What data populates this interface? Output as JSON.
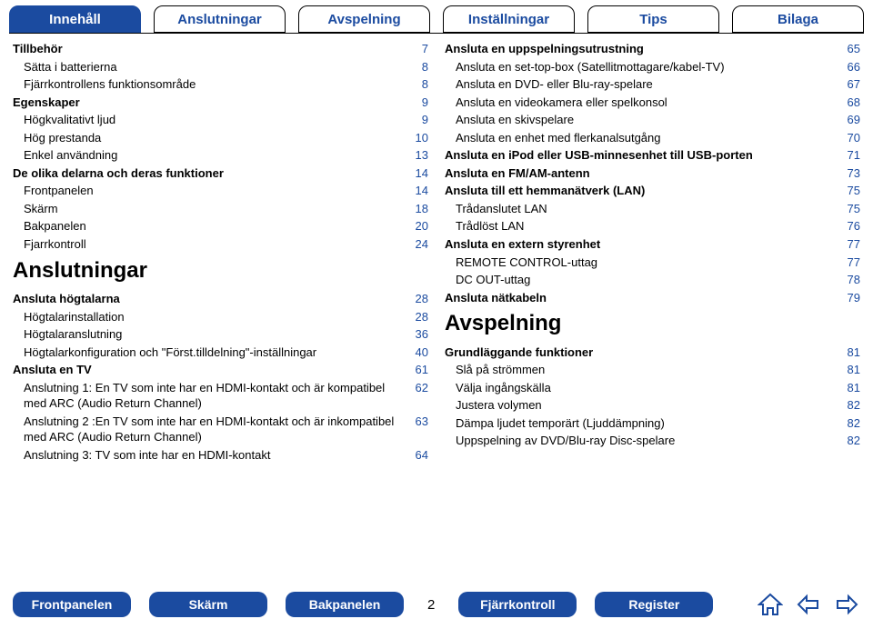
{
  "colors": {
    "brand": "#1b4ba0",
    "text": "#000000",
    "bg": "#ffffff"
  },
  "top_tabs": [
    {
      "label": "Innehåll",
      "active": true
    },
    {
      "label": "Anslutningar",
      "active": false
    },
    {
      "label": "Avspelning",
      "active": false
    },
    {
      "label": "Inställningar",
      "active": false
    },
    {
      "label": "Tips",
      "active": false
    },
    {
      "label": "Bilaga",
      "active": false
    }
  ],
  "col_left": [
    {
      "label": "Tillbehör",
      "page": "7",
      "bold": true,
      "indent": 0
    },
    {
      "label": "Sätta i batterierna",
      "page": "8",
      "bold": false,
      "indent": 1
    },
    {
      "label": "Fjärrkontrollens funktionsområde",
      "page": "8",
      "bold": false,
      "indent": 1
    },
    {
      "label": "Egenskaper",
      "page": "9",
      "bold": true,
      "indent": 0
    },
    {
      "label": "Högkvalitativt ljud",
      "page": "9",
      "bold": false,
      "indent": 1
    },
    {
      "label": "Hög prestanda",
      "page": "10",
      "bold": false,
      "indent": 1
    },
    {
      "label": "Enkel användning",
      "page": "13",
      "bold": false,
      "indent": 1
    },
    {
      "label": "De olika delarna och deras funktioner",
      "page": "14",
      "bold": true,
      "indent": 0
    },
    {
      "label": "Frontpanelen",
      "page": "14",
      "bold": false,
      "indent": 1
    },
    {
      "label": "Skärm",
      "page": "18",
      "bold": false,
      "indent": 1
    },
    {
      "label": "Bakpanelen",
      "page": "20",
      "bold": false,
      "indent": 1
    },
    {
      "label": "Fjarrkontroll",
      "page": "24",
      "bold": false,
      "indent": 1
    }
  ],
  "section_left_title": "Anslutningar",
  "col_left2": [
    {
      "label": "Ansluta högtalarna",
      "page": "28",
      "bold": true,
      "indent": 0
    },
    {
      "label": "Högtalarinstallation",
      "page": "28",
      "bold": false,
      "indent": 1
    },
    {
      "label": "Högtalaranslutning",
      "page": "36",
      "bold": false,
      "indent": 1
    },
    {
      "label": "Högtalarkonfiguration och \"Först.tilldelning\"-inställningar",
      "page": "40",
      "bold": false,
      "indent": 1
    },
    {
      "label": "Ansluta en TV",
      "page": "61",
      "bold": true,
      "indent": 0
    },
    {
      "label": "Anslutning 1: En TV som inte har en HDMI-kontakt och är kompatibel med ARC (Audio Return Channel)",
      "page": "62",
      "bold": false,
      "indent": 1
    },
    {
      "label": "Anslutning 2 :En TV som inte har en HDMI-kontakt och är inkompatibel med ARC (Audio Return Channel)",
      "page": "63",
      "bold": false,
      "indent": 1
    },
    {
      "label": "Anslutning 3: TV som inte har en HDMI-kontakt",
      "page": "64",
      "bold": false,
      "indent": 1
    }
  ],
  "col_right": [
    {
      "label": "Ansluta en uppspelningsutrustning",
      "page": "65",
      "bold": true,
      "indent": 0
    },
    {
      "label": "Ansluta en set-top-box (Satellitmottagare/kabel-TV)",
      "page": "66",
      "bold": false,
      "indent": 1
    },
    {
      "label": "Ansluta en DVD- eller Blu-ray-spelare",
      "page": "67",
      "bold": false,
      "indent": 1
    },
    {
      "label": "Ansluta en videokamera eller spelkonsol",
      "page": "68",
      "bold": false,
      "indent": 1
    },
    {
      "label": "Ansluta en skivspelare",
      "page": "69",
      "bold": false,
      "indent": 1
    },
    {
      "label": "Ansluta en enhet med flerkanalsutgång",
      "page": "70",
      "bold": false,
      "indent": 1
    },
    {
      "label": "Ansluta en iPod eller USB-minnesenhet till USB-porten",
      "page": "71",
      "bold": true,
      "indent": 0
    },
    {
      "label": "Ansluta en FM/AM-antenn",
      "page": "73",
      "bold": true,
      "indent": 0
    },
    {
      "label": "Ansluta till ett hemmanätverk (LAN)",
      "page": "75",
      "bold": true,
      "indent": 0
    },
    {
      "label": "Trådanslutet LAN",
      "page": "75",
      "bold": false,
      "indent": 1
    },
    {
      "label": "Trådlöst LAN",
      "page": "76",
      "bold": false,
      "indent": 1
    },
    {
      "label": "Ansluta en extern styrenhet",
      "page": "77",
      "bold": true,
      "indent": 0
    },
    {
      "label": "REMOTE CONTROL-uttag",
      "page": "77",
      "bold": false,
      "indent": 1
    },
    {
      "label": "DC OUT-uttag",
      "page": "78",
      "bold": false,
      "indent": 1
    },
    {
      "label": "Ansluta nätkabeln",
      "page": "79",
      "bold": true,
      "indent": 0
    }
  ],
  "section_right_title": "Avspelning",
  "col_right2": [
    {
      "label": "Grundläggande funktioner",
      "page": "81",
      "bold": true,
      "indent": 0
    },
    {
      "label": "Slå på strömmen",
      "page": "81",
      "bold": false,
      "indent": 1
    },
    {
      "label": "Välja ingångskälla",
      "page": "81",
      "bold": false,
      "indent": 1
    },
    {
      "label": "Justera volymen",
      "page": "82",
      "bold": false,
      "indent": 1
    },
    {
      "label": "Dämpa ljudet temporärt (Ljuddämpning)",
      "page": "82",
      "bold": false,
      "indent": 1
    },
    {
      "label": "Uppspelning av DVD/Blu-ray Disc-spelare",
      "page": "82",
      "bold": false,
      "indent": 1
    }
  ],
  "bottom_buttons": [
    {
      "label": "Frontpanelen"
    },
    {
      "label": "Skärm"
    },
    {
      "label": "Bakpanelen"
    }
  ],
  "page_number": "2",
  "bottom_buttons_right": [
    {
      "label": "Fjärrkontroll"
    },
    {
      "label": "Register"
    }
  ],
  "icons": {
    "home": "home-icon",
    "back": "arrow-left-icon",
    "forward": "arrow-right-icon"
  }
}
